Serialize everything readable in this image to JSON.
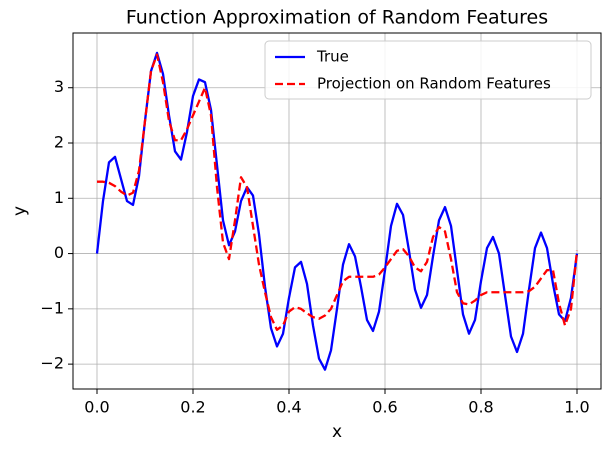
{
  "chart_data": {
    "type": "line",
    "title": "Function Approximation of Random Features",
    "xlabel": "x",
    "ylabel": "y",
    "x": [
      0,
      0.0125,
      0.025,
      0.0375,
      0.05,
      0.0625,
      0.075,
      0.0875,
      0.1,
      0.1125,
      0.125,
      0.1375,
      0.15,
      0.1625,
      0.175,
      0.1875,
      0.2,
      0.2125,
      0.225,
      0.2375,
      0.25,
      0.2625,
      0.275,
      0.2875,
      0.3,
      0.3125,
      0.325,
      0.3375,
      0.35,
      0.3625,
      0.375,
      0.3875,
      0.4,
      0.4125,
      0.425,
      0.4375,
      0.45,
      0.4625,
      0.475,
      0.4875,
      0.5,
      0.5125,
      0.525,
      0.5375,
      0.55,
      0.5625,
      0.575,
      0.5875,
      0.6,
      0.6125,
      0.625,
      0.6375,
      0.65,
      0.6625,
      0.675,
      0.6875,
      0.7,
      0.7125,
      0.725,
      0.7375,
      0.75,
      0.7625,
      0.775,
      0.7875,
      0.8,
      0.8125,
      0.825,
      0.8375,
      0.85,
      0.8625,
      0.875,
      0.8875,
      0.9,
      0.9125,
      0.925,
      0.9375,
      0.95,
      0.9625,
      0.975,
      0.9875,
      1
    ],
    "series": [
      {
        "name": "True",
        "color": "#0000ff",
        "linestyle": "solid",
        "values": [
          0,
          0.95,
          1.65,
          1.75,
          1.35,
          0.95,
          0.88,
          1.4,
          2.4,
          3.3,
          3.63,
          3.25,
          2.5,
          1.85,
          1.7,
          2.2,
          2.85,
          3.15,
          3.1,
          2.6,
          1.6,
          0.6,
          0.15,
          0.4,
          0.95,
          1.2,
          1.05,
          0.35,
          -0.6,
          -1.35,
          -1.68,
          -1.45,
          -0.8,
          -0.25,
          -0.15,
          -0.55,
          -1.3,
          -1.9,
          -2.1,
          -1.75,
          -1.0,
          -0.2,
          0.17,
          -0.05,
          -0.6,
          -1.2,
          -1.4,
          -1.05,
          -0.3,
          0.5,
          0.9,
          0.7,
          0.05,
          -0.65,
          -0.98,
          -0.75,
          -0.05,
          0.6,
          0.84,
          0.5,
          -0.3,
          -1.1,
          -1.45,
          -1.2,
          -0.5,
          0.1,
          0.3,
          0.0,
          -0.75,
          -1.5,
          -1.78,
          -1.45,
          -0.65,
          0.1,
          0.38,
          0.1,
          -0.55,
          -1.1,
          -1.22,
          -0.8,
          0.0
        ]
      },
      {
        "name": "Projection on Random Features",
        "color": "#ff0000",
        "linestyle": "dashed",
        "values": [
          1.3,
          1.3,
          1.28,
          1.22,
          1.12,
          1.05,
          1.1,
          1.5,
          2.4,
          3.3,
          3.6,
          3.1,
          2.4,
          2.05,
          2.05,
          2.25,
          2.5,
          2.75,
          3.0,
          2.5,
          1.2,
          0.2,
          -0.1,
          0.6,
          1.38,
          1.2,
          0.5,
          -0.2,
          -0.7,
          -1.15,
          -1.38,
          -1.3,
          -1.05,
          -0.97,
          -1.0,
          -1.08,
          -1.15,
          -1.18,
          -1.12,
          -1.0,
          -0.75,
          -0.5,
          -0.42,
          -0.42,
          -0.42,
          -0.42,
          -0.42,
          -0.38,
          -0.25,
          -0.1,
          0.05,
          0.08,
          -0.05,
          -0.25,
          -0.32,
          -0.15,
          0.3,
          0.48,
          0.4,
          -0.1,
          -0.7,
          -0.9,
          -0.92,
          -0.85,
          -0.75,
          -0.7,
          -0.7,
          -0.7,
          -0.7,
          -0.7,
          -0.7,
          -0.7,
          -0.68,
          -0.6,
          -0.45,
          -0.3,
          -0.3,
          -0.9,
          -1.3,
          -1.0,
          0.05
        ]
      }
    ],
    "xlim": [
      -0.05,
      1.05
    ],
    "ylim": [
      -2.45,
      3.99
    ],
    "xticks": [
      {
        "value": 0,
        "label": "0.0"
      },
      {
        "value": 0.2,
        "label": "0.2"
      },
      {
        "value": 0.4,
        "label": "0.4"
      },
      {
        "value": 0.6,
        "label": "0.6"
      },
      {
        "value": 0.8,
        "label": "0.8"
      },
      {
        "value": 1,
        "label": "1.0"
      }
    ],
    "yticks": [
      {
        "value": -2,
        "label": "−2"
      },
      {
        "value": -1,
        "label": "−1"
      },
      0,
      1,
      2,
      3
    ],
    "grid": true,
    "legend": "upper right"
  }
}
